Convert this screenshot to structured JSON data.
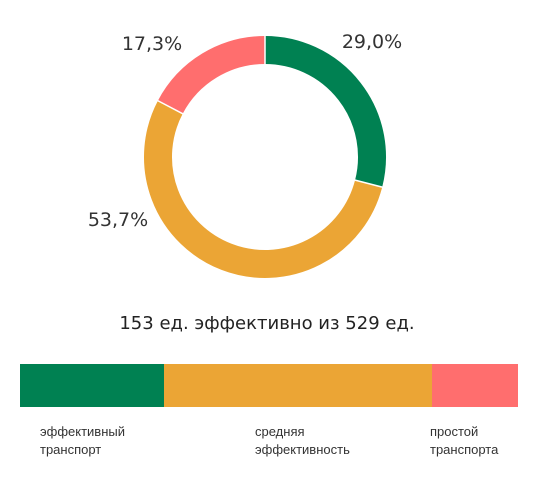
{
  "chart_data": [
    {
      "type": "pie",
      "variant": "donut",
      "categories": [
        "эффективный транспорт",
        "средняя эффективность",
        "простой транспорта"
      ],
      "values": [
        29.0,
        53.7,
        17.3
      ],
      "value_labels": [
        "29,0%",
        "53,7%",
        "17,3%"
      ],
      "colors": [
        "#008152",
        "#eba535",
        "#ff6e6e"
      ]
    },
    {
      "type": "bar",
      "variant": "stacked-horizontal",
      "categories": [
        "эффективный транспорт",
        "средняя эффективность",
        "простой транспорта"
      ],
      "values": [
        29.0,
        53.7,
        17.3
      ],
      "colors": [
        "#008152",
        "#eba535",
        "#ff6e6e"
      ]
    }
  ],
  "summary": "153 ед. эффективно из 529 ед.",
  "legend": [
    {
      "label": "эффективный\nтранспорт",
      "color": "#008152"
    },
    {
      "label": "средняя\nэффективность",
      "color": "#eba535"
    },
    {
      "label": "простой\nтранспорта",
      "color": "#ff6e6e"
    }
  ]
}
